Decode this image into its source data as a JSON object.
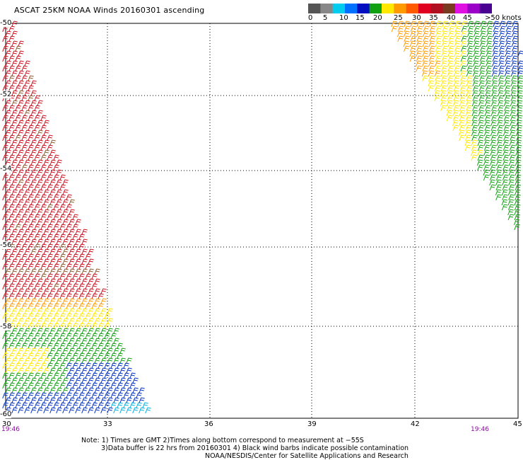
{
  "title": "ASCAT 25KM NOAA Winds 20160301 ascending",
  "colorbar": {
    "labels": [
      "0",
      "5",
      "10",
      "15",
      "20",
      "25",
      "30",
      "35",
      "40",
      "45",
      ">50 knots"
    ],
    "colors": [
      "#555555",
      "#888888",
      "#00ccee",
      "#0070ff",
      "#0010c0",
      "#10a010",
      "#ffe800",
      "#ff9a00",
      "#ff5a00",
      "#e00020",
      "#b01020",
      "#7a3a20",
      "#e010e0",
      "#9a00c8",
      "#4a0090"
    ]
  },
  "axes": {
    "x_ticks": [
      "30",
      "33",
      "36",
      "39",
      "42",
      "45"
    ],
    "y_ticks": [
      "-50",
      "-52",
      "-54",
      "-56",
      "-58",
      "-60"
    ]
  },
  "times": {
    "left": "19:46",
    "right": "19:46"
  },
  "notes": {
    "line1": "Note: 1) Times are GMT 2)Times along bottom correspond to measurement at −55S",
    "line2": "3)Data buffer is 22 hrs from 20160301 4) Black wind barbs indicate possible contamination",
    "line3": "NOAA/NESDIS/Center for Satellite Applications and Research"
  }
}
